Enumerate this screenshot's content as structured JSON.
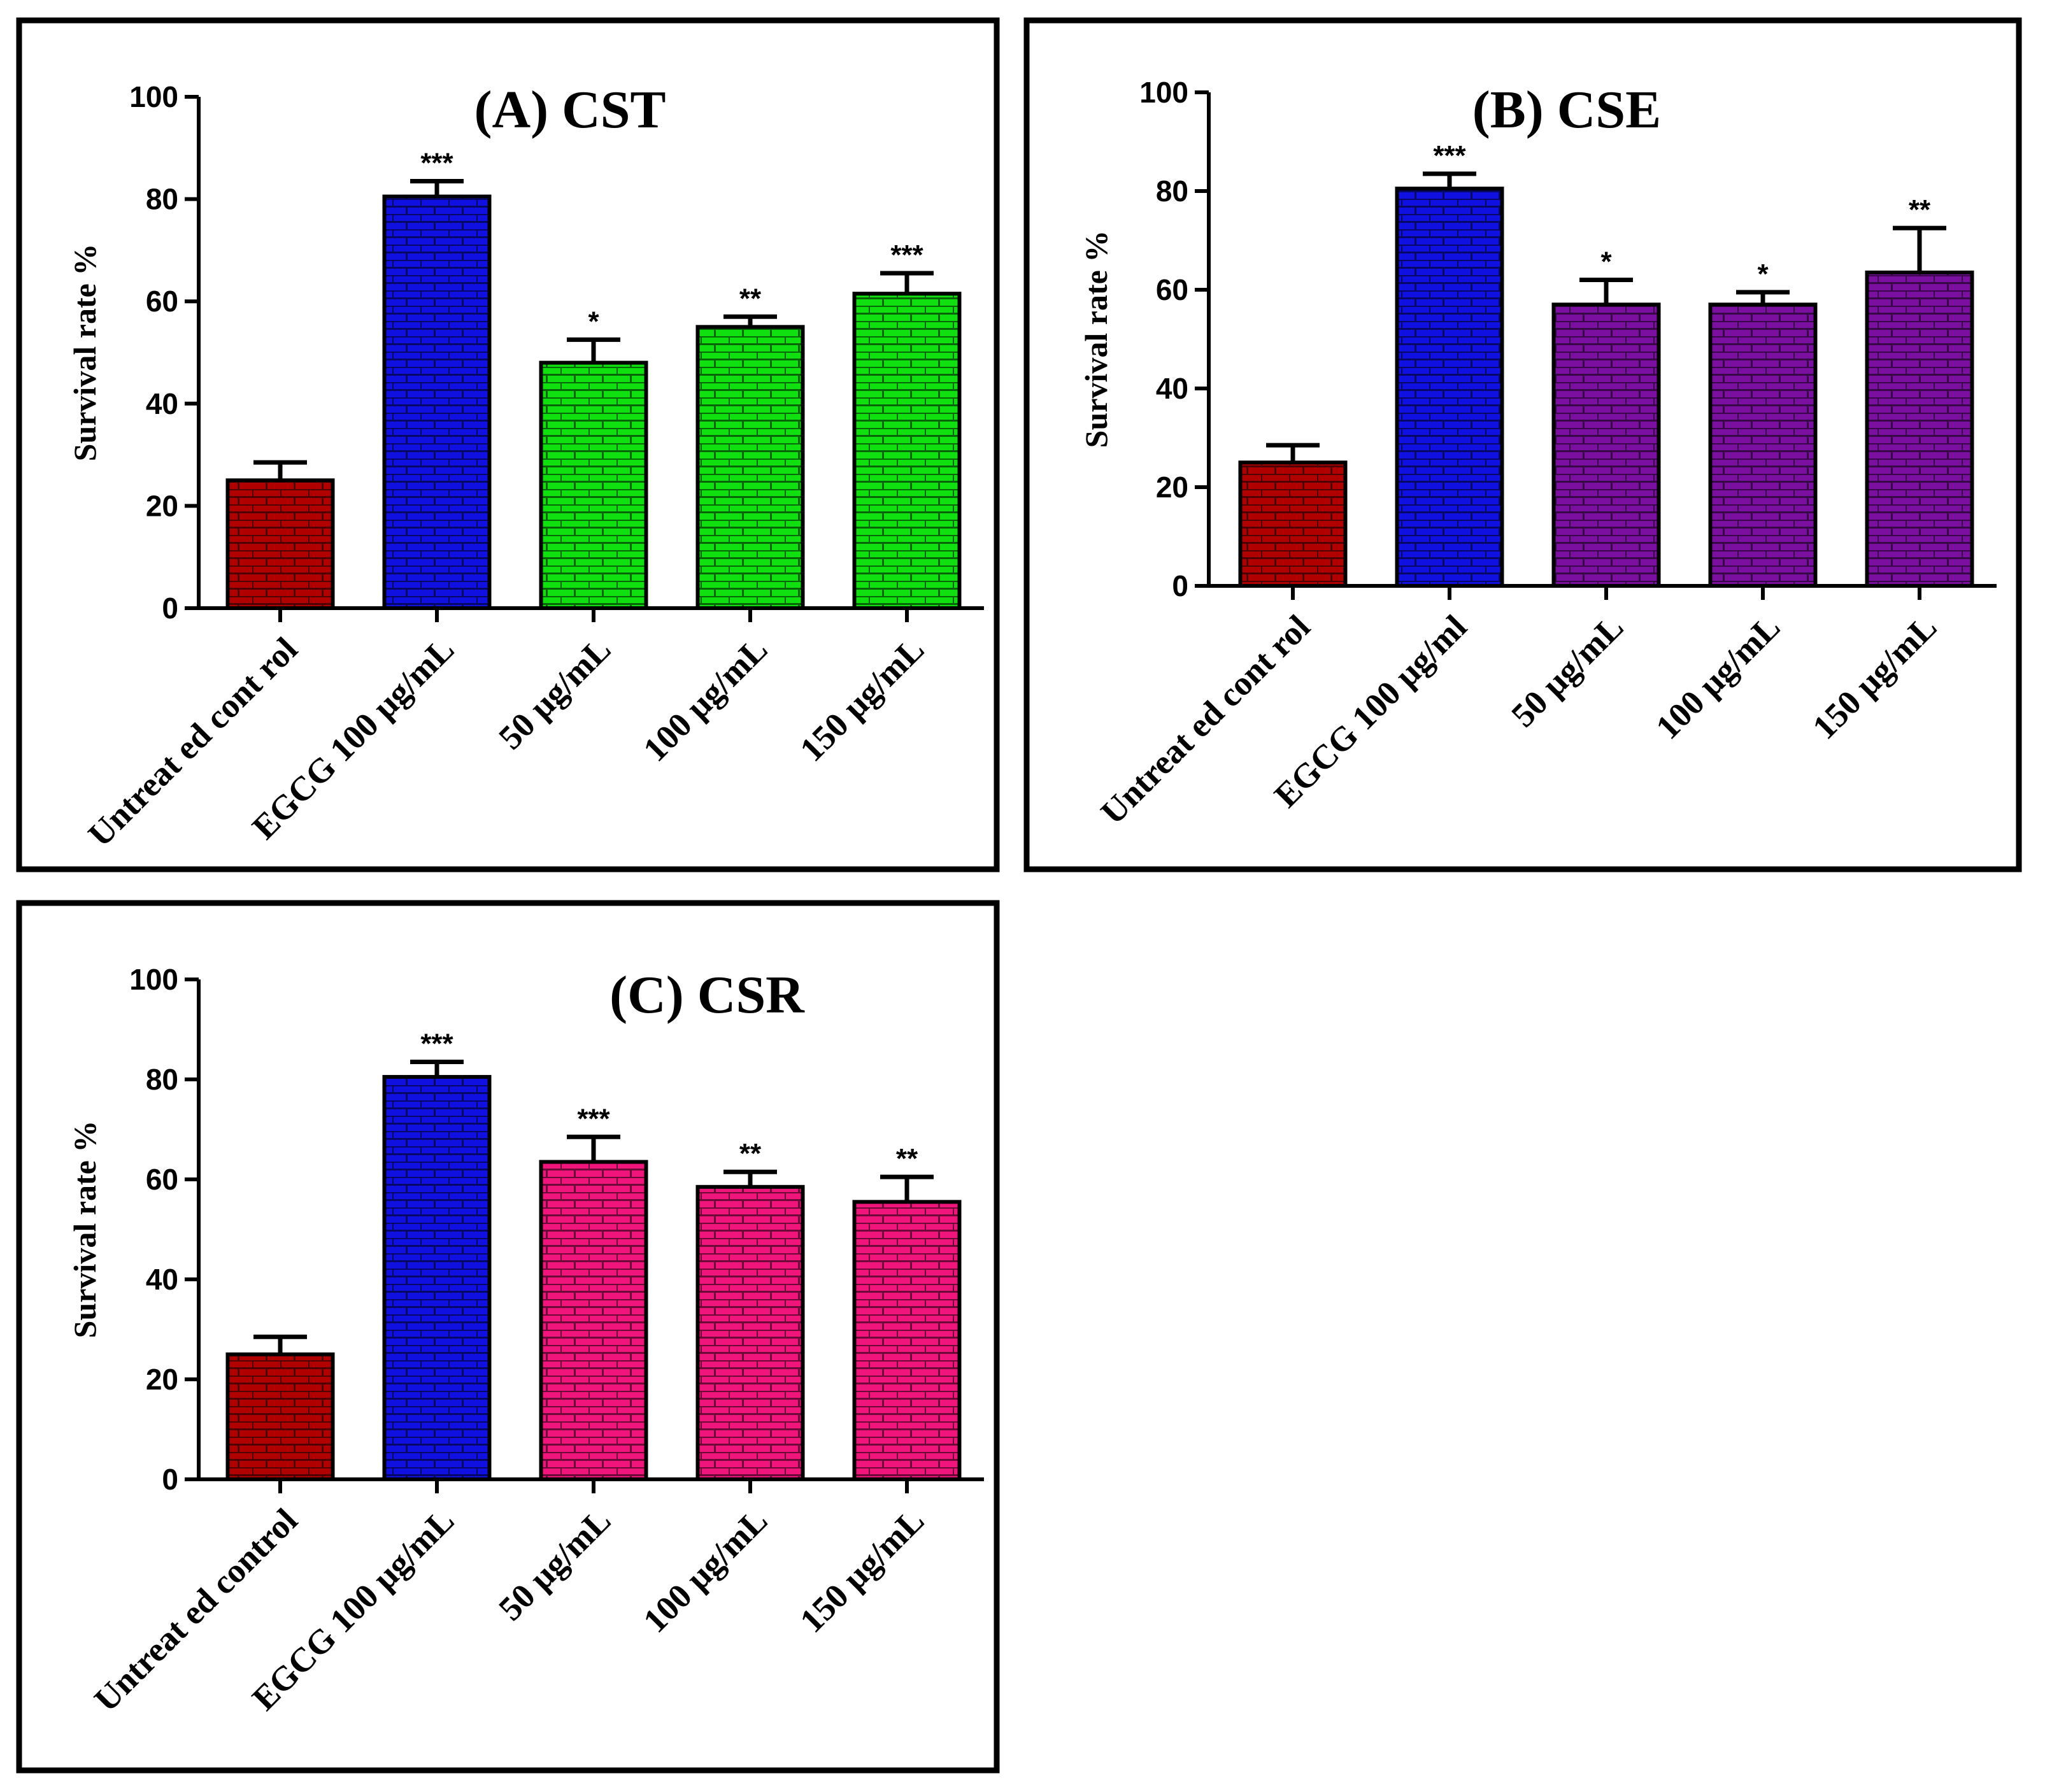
{
  "chart_data": [
    {
      "type": "bar",
      "title": "(A) CST",
      "ylabel": "Survival rate %",
      "xlabel": "",
      "ylim": [
        0,
        100
      ],
      "yticks": [
        0,
        20,
        40,
        60,
        80,
        100
      ],
      "categories": [
        "Untreat ed cont rol",
        "EGCG 100 µg/mL",
        "50  µg/mL",
        "100  µg/mL",
        "150  µg/mL"
      ],
      "values": [
        25,
        80.5,
        48,
        55,
        61.5
      ],
      "errors": [
        3.5,
        3,
        4.5,
        2,
        4
      ],
      "significance": [
        "",
        "***",
        "*",
        "**",
        "***"
      ],
      "colors": [
        "#b00000",
        "#1010e0",
        "#10e010",
        "#10e010",
        "#10e010"
      ]
    },
    {
      "type": "bar",
      "title": "(B) CSE",
      "ylabel": "Survival rate %",
      "xlabel": "",
      "ylim": [
        0,
        100
      ],
      "yticks": [
        0,
        20,
        40,
        60,
        80,
        100
      ],
      "categories": [
        "Untreat ed cont rol",
        "EGCG 100 µg/ml",
        "50  µg/mL",
        "100  µg/mL",
        "150 µg/mL"
      ],
      "values": [
        25,
        80.5,
        57,
        57,
        63.5
      ],
      "errors": [
        3.5,
        3,
        5,
        2.5,
        9
      ],
      "significance": [
        "",
        "***",
        "*",
        "*",
        "**"
      ],
      "colors": [
        "#b00000",
        "#1010e0",
        "#7a0fa0",
        "#7a0fa0",
        "#7a0fa0"
      ]
    },
    {
      "type": "bar",
      "title": "(C) CSR",
      "ylabel": "Survival rate %",
      "xlabel": "",
      "ylim": [
        0,
        100
      ],
      "yticks": [
        0,
        20,
        40,
        60,
        80,
        100
      ],
      "categories": [
        "Untreat ed control",
        "EGCG 100 µg/mL",
        "50  µg/mL",
        "100  µg/mL",
        "150  µg/mL"
      ],
      "values": [
        25,
        80.5,
        63.5,
        58.5,
        55.5
      ],
      "errors": [
        3.5,
        3,
        5,
        3,
        5
      ],
      "significance": [
        "",
        "***",
        "***",
        "**",
        "**"
      ],
      "colors": [
        "#b00000",
        "#1010e0",
        "#f0157a",
        "#f0157a",
        "#f0157a"
      ]
    }
  ]
}
